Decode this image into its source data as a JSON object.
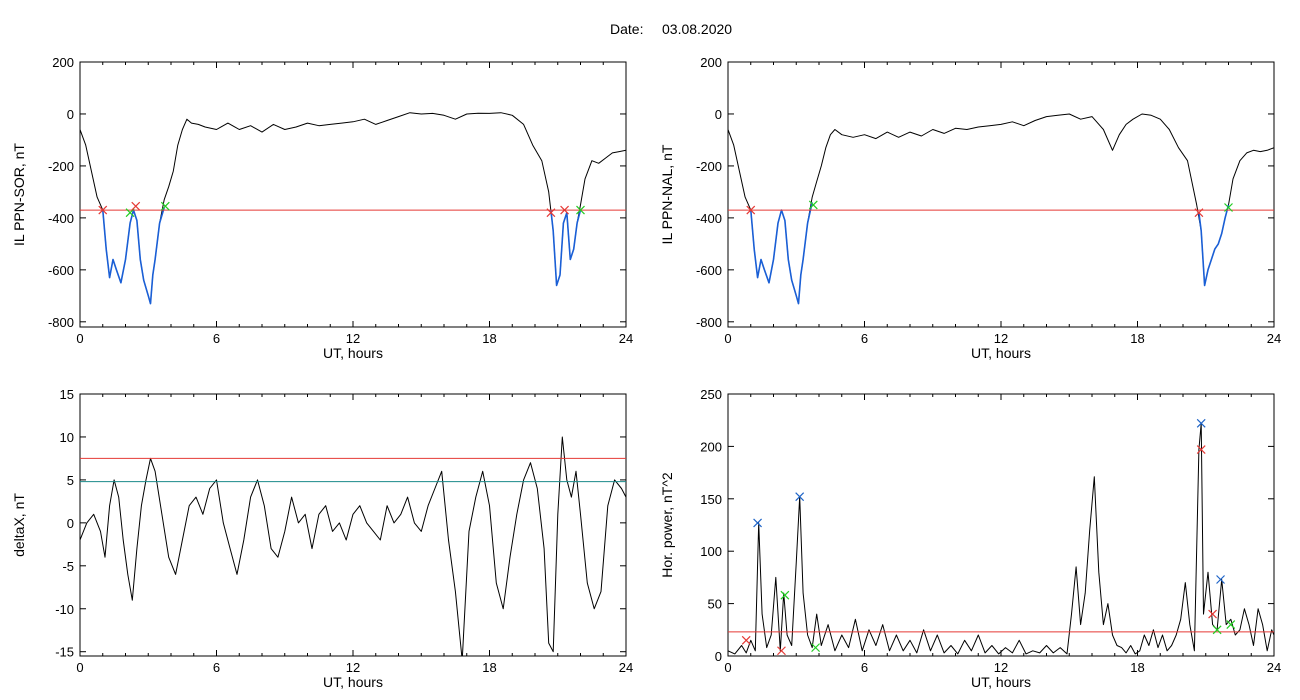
{
  "header": {
    "date_label": "Date:",
    "date_value": "03.08.2020"
  },
  "colors": {
    "trace": "#000000",
    "highlight": "#1a5fd6",
    "threshold": "#e53935",
    "threshold2": "#1a8a8a",
    "marker_red": "#e53935",
    "marker_green": "#22cc22",
    "marker_blue": "#1e64c8"
  },
  "chart_data": [
    {
      "type": "line",
      "id": "p1",
      "ylabel": "IL PPN-SOR, nT",
      "xlabel": "UT, hours",
      "xlim": [
        0,
        24
      ],
      "ylim": [
        -820,
        200
      ],
      "xticks": [
        0,
        6,
        12,
        18,
        24
      ],
      "yticks": [
        200,
        0,
        -200,
        -400,
        -600,
        -800
      ],
      "series": [
        {
          "x": [
            0,
            0.25,
            0.5,
            0.75,
            1.0,
            1.15,
            1.3,
            1.45,
            1.6,
            1.8,
            2.0,
            2.2,
            2.35,
            2.5,
            2.65,
            2.8,
            3.0,
            3.1,
            3.2,
            3.3,
            3.5,
            3.7,
            3.9,
            4.1,
            4.3,
            4.5,
            4.7,
            4.9,
            5.2,
            5.5,
            6.0,
            6.5,
            7.0,
            7.5,
            8.0,
            8.5,
            9.0,
            9.5,
            10.0,
            10.5,
            11.0,
            11.5,
            12.0,
            12.5,
            13.0,
            13.5,
            14.0,
            14.5,
            15.0,
            15.5,
            16.0,
            16.5,
            17.0,
            17.5,
            18.0,
            18.5,
            19.0,
            19.5,
            19.9,
            20.3,
            20.6,
            20.8,
            20.95,
            21.1,
            21.25,
            21.4,
            21.55,
            21.7,
            21.85,
            22.0,
            22.2,
            22.5,
            22.8,
            23.1,
            23.4,
            23.7,
            24.0
          ],
          "y": [
            -60,
            -120,
            -220,
            -320,
            -370,
            -520,
            -630,
            -560,
            -600,
            -650,
            -560,
            -420,
            -370,
            -410,
            -560,
            -640,
            -700,
            -730,
            -620,
            -560,
            -420,
            -330,
            -280,
            -220,
            -120,
            -60,
            -20,
            -35,
            -40,
            -50,
            -60,
            -35,
            -60,
            -45,
            -70,
            -40,
            -60,
            -50,
            -35,
            -45,
            -40,
            -35,
            -30,
            -20,
            -40,
            -25,
            -10,
            5,
            0,
            2,
            -5,
            -20,
            0,
            3,
            2,
            5,
            -5,
            -40,
            -120,
            -180,
            -300,
            -450,
            -660,
            -620,
            -420,
            -380,
            -560,
            -520,
            -420,
            -350,
            -250,
            -180,
            -190,
            -170,
            -150,
            -145,
            -140
          ]
        },
        {
          "x": [
            1.0,
            1.15,
            1.3,
            1.45,
            1.6,
            1.8,
            2.0,
            2.2,
            2.35,
            2.5,
            2.65,
            2.8,
            3.0,
            3.1,
            3.2,
            3.3,
            3.5,
            3.7
          ],
          "y": [
            -370,
            -520,
            -630,
            -560,
            -600,
            -650,
            -560,
            -420,
            -370,
            -410,
            -560,
            -640,
            -700,
            -730,
            -620,
            -560,
            -420,
            -360
          ],
          "style": "highlight"
        },
        {
          "x": [
            20.7,
            20.8,
            20.95,
            21.1,
            21.25,
            21.4,
            21.55,
            21.7,
            21.85,
            22.0
          ],
          "y": [
            -370,
            -450,
            -660,
            -620,
            -420,
            -380,
            -560,
            -520,
            -420,
            -370
          ],
          "style": "highlight"
        }
      ],
      "hlines": [
        {
          "y": -370,
          "color": "red"
        }
      ],
      "markers": [
        {
          "x": 1.0,
          "y": -370,
          "color": "red"
        },
        {
          "x": 2.2,
          "y": -380,
          "color": "green"
        },
        {
          "x": 2.45,
          "y": -355,
          "color": "red"
        },
        {
          "x": 3.75,
          "y": -355,
          "color": "green"
        },
        {
          "x": 20.7,
          "y": -380,
          "color": "red"
        },
        {
          "x": 21.3,
          "y": -370,
          "color": "red"
        },
        {
          "x": 22.0,
          "y": -370,
          "color": "green"
        }
      ]
    },
    {
      "type": "line",
      "id": "p2",
      "ylabel": "IL PPN-NAL, nT",
      "xlabel": "UT, hours",
      "xlim": [
        0,
        24
      ],
      "ylim": [
        -820,
        200
      ],
      "xticks": [
        0,
        6,
        12,
        18,
        24
      ],
      "yticks": [
        200,
        0,
        -200,
        -400,
        -600,
        -800
      ],
      "series": [
        {
          "x": [
            0,
            0.25,
            0.5,
            0.75,
            1.0,
            1.15,
            1.3,
            1.45,
            1.6,
            1.8,
            2.0,
            2.2,
            2.35,
            2.5,
            2.65,
            2.8,
            3.0,
            3.1,
            3.2,
            3.3,
            3.5,
            3.7,
            3.9,
            4.1,
            4.3,
            4.5,
            4.7,
            5.0,
            5.5,
            6.0,
            6.5,
            7.0,
            7.5,
            8.0,
            8.5,
            9.0,
            9.5,
            10.0,
            10.5,
            11.0,
            11.5,
            12.0,
            12.5,
            13.0,
            13.5,
            14.0,
            14.5,
            15.0,
            15.5,
            16.0,
            16.5,
            16.9,
            17.2,
            17.5,
            17.8,
            18.2,
            18.6,
            19.0,
            19.4,
            19.8,
            20.2,
            20.6,
            20.8,
            20.95,
            21.1,
            21.25,
            21.4,
            21.55,
            21.7,
            21.85,
            22.0,
            22.2,
            22.5,
            22.8,
            23.1,
            23.4,
            23.7,
            24.0
          ],
          "y": [
            -60,
            -120,
            -220,
            -320,
            -370,
            -520,
            -630,
            -560,
            -600,
            -650,
            -560,
            -420,
            -370,
            -410,
            -560,
            -640,
            -700,
            -730,
            -620,
            -560,
            -420,
            -320,
            -260,
            -200,
            -130,
            -80,
            -60,
            -80,
            -90,
            -80,
            -95,
            -70,
            -90,
            -70,
            -85,
            -60,
            -75,
            -55,
            -60,
            -50,
            -45,
            -40,
            -30,
            -45,
            -25,
            -10,
            -5,
            0,
            -20,
            -10,
            -60,
            -140,
            -80,
            -40,
            -20,
            0,
            -5,
            -20,
            -60,
            -130,
            -180,
            -350,
            -450,
            -660,
            -600,
            -560,
            -520,
            -500,
            -460,
            -400,
            -350,
            -250,
            -180,
            -150,
            -140,
            -145,
            -140,
            -130
          ]
        },
        {
          "x": [
            1.0,
            1.15,
            1.3,
            1.45,
            1.6,
            1.8,
            2.0,
            2.2,
            2.35,
            2.5,
            2.65,
            2.8,
            3.0,
            3.1,
            3.2,
            3.3,
            3.5,
            3.7
          ],
          "y": [
            -370,
            -520,
            -630,
            -560,
            -600,
            -650,
            -560,
            -420,
            -370,
            -410,
            -560,
            -640,
            -700,
            -730,
            -620,
            -560,
            -420,
            -340
          ],
          "style": "highlight"
        },
        {
          "x": [
            20.7,
            20.8,
            20.95,
            21.1,
            21.25,
            21.4,
            21.55,
            21.7,
            21.85,
            22.0
          ],
          "y": [
            -380,
            -450,
            -660,
            -600,
            -560,
            -520,
            -500,
            -460,
            -400,
            -350
          ],
          "style": "highlight"
        }
      ],
      "hlines": [
        {
          "y": -370,
          "color": "red"
        }
      ],
      "markers": [
        {
          "x": 1.0,
          "y": -370,
          "color": "red"
        },
        {
          "x": 3.75,
          "y": -350,
          "color": "green"
        },
        {
          "x": 20.7,
          "y": -380,
          "color": "red"
        },
        {
          "x": 22.0,
          "y": -360,
          "color": "green"
        }
      ]
    },
    {
      "type": "line",
      "id": "p3",
      "ylabel": "deltaX, nT",
      "xlabel": "UT, hours",
      "xlim": [
        0,
        24
      ],
      "ylim": [
        -15.5,
        15
      ],
      "xticks": [
        0,
        6,
        12,
        18,
        24
      ],
      "yticks": [
        15,
        10,
        5,
        0,
        -5,
        -10,
        -15
      ],
      "series": [
        {
          "x": [
            0,
            0.3,
            0.6,
            0.9,
            1.1,
            1.3,
            1.5,
            1.7,
            1.9,
            2.1,
            2.3,
            2.5,
            2.7,
            2.9,
            3.1,
            3.3,
            3.6,
            3.9,
            4.2,
            4.5,
            4.8,
            5.1,
            5.4,
            5.7,
            6.0,
            6.3,
            6.6,
            6.9,
            7.2,
            7.5,
            7.8,
            8.1,
            8.4,
            8.7,
            9.0,
            9.3,
            9.6,
            9.9,
            10.2,
            10.5,
            10.8,
            11.1,
            11.4,
            11.7,
            12.0,
            12.3,
            12.6,
            12.9,
            13.2,
            13.5,
            13.8,
            14.1,
            14.4,
            14.7,
            15.0,
            15.3,
            15.6,
            15.9,
            16.2,
            16.5,
            16.8,
            17.1,
            17.4,
            17.7,
            18.0,
            18.3,
            18.6,
            18.9,
            19.2,
            19.5,
            19.8,
            20.1,
            20.4,
            20.6,
            20.8,
            21.0,
            21.2,
            21.4,
            21.6,
            21.8,
            22.0,
            22.3,
            22.6,
            22.9,
            23.2,
            23.5,
            23.8,
            24.0
          ],
          "y": [
            -2,
            0,
            1,
            -1,
            -4,
            2,
            5,
            3,
            -2,
            -6,
            -9,
            -3,
            2,
            5,
            7.5,
            6,
            1,
            -4,
            -6,
            -2,
            2,
            3,
            1,
            4,
            5,
            0,
            -3,
            -6,
            -2,
            3,
            5,
            2,
            -3,
            -4,
            -1,
            3,
            0,
            1,
            -3,
            1,
            2,
            -1,
            0,
            -2,
            1,
            2,
            0,
            -1,
            -2,
            2,
            0,
            1,
            3,
            0,
            -1,
            2,
            4,
            6,
            -2,
            -8,
            -16,
            -1,
            3,
            6,
            2,
            -7,
            -10,
            -4,
            1,
            5,
            7,
            4,
            -3,
            -14,
            -15,
            1,
            10,
            5,
            3,
            6,
            1,
            -7,
            -10,
            -8,
            2,
            5,
            4,
            3
          ]
        }
      ],
      "hlines": [
        {
          "y": 7.5,
          "color": "red"
        },
        {
          "y": 4.8,
          "color": "teal"
        }
      ],
      "markers": []
    },
    {
      "type": "line",
      "id": "p4",
      "ylabel": "Hor. power, nT^2",
      "xlabel": "UT, hours",
      "xlim": [
        0,
        24
      ],
      "ylim": [
        0,
        250
      ],
      "xticks": [
        0,
        6,
        12,
        18,
        24
      ],
      "yticks": [
        250,
        200,
        150,
        100,
        50,
        0
      ],
      "series": [
        {
          "x": [
            0,
            0.3,
            0.6,
            0.8,
            1.0,
            1.2,
            1.35,
            1.5,
            1.7,
            1.9,
            2.1,
            2.3,
            2.45,
            2.6,
            2.8,
            3.0,
            3.15,
            3.3,
            3.5,
            3.7,
            3.9,
            4.1,
            4.4,
            4.7,
            5.0,
            5.3,
            5.6,
            5.9,
            6.2,
            6.5,
            6.8,
            7.1,
            7.4,
            7.7,
            8.0,
            8.3,
            8.6,
            8.9,
            9.2,
            9.5,
            9.8,
            10.1,
            10.4,
            10.7,
            11.0,
            11.3,
            11.6,
            11.9,
            12.2,
            12.5,
            12.8,
            13.1,
            13.4,
            13.7,
            14.0,
            14.3,
            14.6,
            14.9,
            15.1,
            15.3,
            15.5,
            15.7,
            15.9,
            16.1,
            16.3,
            16.5,
            16.7,
            16.9,
            17.1,
            17.3,
            17.5,
            17.7,
            17.9,
            18.1,
            18.3,
            18.5,
            18.7,
            18.9,
            19.1,
            19.3,
            19.5,
            19.7,
            19.9,
            20.1,
            20.3,
            20.5,
            20.7,
            20.8,
            20.9,
            21.1,
            21.3,
            21.5,
            21.7,
            21.9,
            22.1,
            22.3,
            22.5,
            22.7,
            22.9,
            23.1,
            23.3,
            23.5,
            23.7,
            23.9,
            24.0
          ],
          "y": [
            5,
            2,
            10,
            3,
            15,
            5,
            127,
            40,
            8,
            20,
            75,
            5,
            60,
            20,
            10,
            90,
            152,
            60,
            20,
            8,
            40,
            10,
            30,
            5,
            20,
            8,
            35,
            5,
            25,
            10,
            30,
            5,
            20,
            5,
            15,
            3,
            25,
            5,
            20,
            3,
            10,
            2,
            15,
            5,
            20,
            3,
            10,
            2,
            8,
            3,
            15,
            2,
            5,
            3,
            10,
            3,
            8,
            2,
            40,
            85,
            30,
            60,
            120,
            171,
            80,
            30,
            50,
            20,
            10,
            8,
            3,
            10,
            2,
            5,
            20,
            10,
            25,
            8,
            20,
            5,
            10,
            20,
            35,
            70,
            30,
            5,
            197,
            222,
            40,
            80,
            30,
            25,
            73,
            30,
            35,
            20,
            25,
            45,
            30,
            10,
            45,
            30,
            5,
            25,
            20
          ]
        }
      ],
      "hlines": [
        {
          "y": 23,
          "color": "red"
        }
      ],
      "markers": [
        {
          "x": 1.3,
          "y": 127,
          "color": "blue"
        },
        {
          "x": 3.15,
          "y": 152,
          "color": "blue"
        },
        {
          "x": 20.8,
          "y": 222,
          "color": "blue"
        },
        {
          "x": 21.65,
          "y": 73,
          "color": "blue"
        },
        {
          "x": 20.8,
          "y": 197,
          "color": "red"
        },
        {
          "x": 0.8,
          "y": 15,
          "color": "red"
        },
        {
          "x": 2.35,
          "y": 5,
          "color": "red"
        },
        {
          "x": 21.3,
          "y": 40,
          "color": "red"
        },
        {
          "x": 2.5,
          "y": 58,
          "color": "green"
        },
        {
          "x": 3.85,
          "y": 8,
          "color": "green"
        },
        {
          "x": 21.5,
          "y": 25,
          "color": "green"
        },
        {
          "x": 22.1,
          "y": 30,
          "color": "green"
        }
      ]
    }
  ]
}
